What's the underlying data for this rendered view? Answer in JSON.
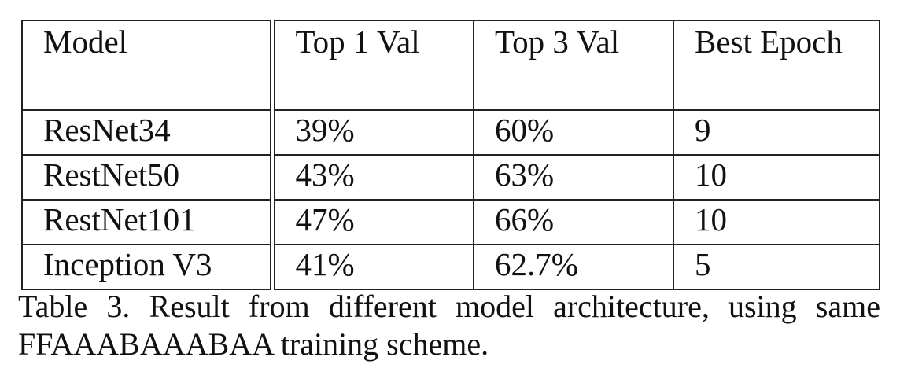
{
  "table": {
    "headers": [
      "Model",
      "Top 1 Val",
      "Top 3 Val",
      "Best Epoch"
    ],
    "rows": [
      [
        "ResNet34",
        "39%",
        "60%",
        "9"
      ],
      [
        "RestNet50",
        "43%",
        "63%",
        "10"
      ],
      [
        "RestNet101",
        "47%",
        "66%",
        "10"
      ],
      [
        "Inception V3",
        "41%",
        "62.7%",
        "5"
      ]
    ]
  },
  "caption": "Table 3. Result from different model architecture, using same FFAAABAAABAA training scheme."
}
